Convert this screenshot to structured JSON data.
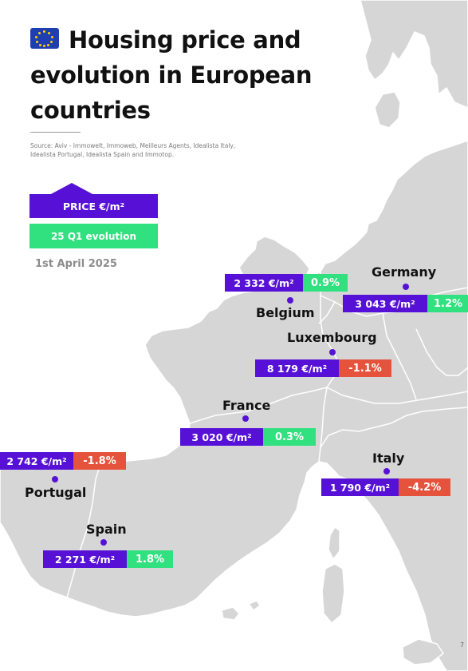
{
  "header": {
    "flag_icon": "eu-flag-icon",
    "title": "Housing price and evolution in European countries",
    "source": "Source: Aviv - Immowelt, Immoweb, Meilleurs Agents, Idealista Italy, Idealista Portugal, Idealista Spain and Immotop."
  },
  "legend": {
    "price_label": "PRICE  €/m²",
    "evolution_label": "25 Q1 evolution",
    "date": "1st April 2025"
  },
  "colors": {
    "price": "#5711d6",
    "positive": "#31e07e",
    "negative": "#e5533d",
    "land": "#d6d6d6",
    "border": "#ffffff"
  },
  "countries": [
    {
      "name": "Germany",
      "price": "3 043 €/m²",
      "evolution": "1.2%",
      "trend": "positive"
    },
    {
      "name": "Belgium",
      "price": "2 332 €/m²",
      "evolution": "0.9%",
      "trend": "positive"
    },
    {
      "name": "Luxembourg",
      "price": "8 179 €/m²",
      "evolution": "-1.1%",
      "trend": "negative"
    },
    {
      "name": "France",
      "price": "3 020 €/m²",
      "evolution": "0.3%",
      "trend": "positive"
    },
    {
      "name": "Portugal",
      "price": "2 742 €/m²",
      "evolution": "-1.8%",
      "trend": "negative"
    },
    {
      "name": "Italy",
      "price": "1 790 €/m²",
      "evolution": "-4.2%",
      "trend": "negative"
    },
    {
      "name": "Spain",
      "price": "2 271 €/m²",
      "evolution": "1.8%",
      "trend": "positive"
    }
  ],
  "page_number": "7"
}
